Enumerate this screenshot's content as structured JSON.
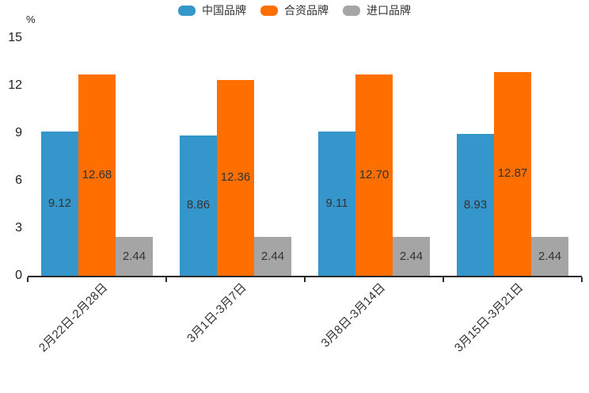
{
  "chart_data": {
    "type": "bar",
    "title": "",
    "unit_label": "%",
    "categories": [
      "2月22日-2月28日",
      "3月1日-3月7日",
      "3月8日-3月14日",
      "3月15日-3月21日"
    ],
    "series": [
      {
        "name": "中国品牌",
        "color": "#3496CB",
        "values": [
          9.12,
          8.86,
          9.11,
          8.93
        ]
      },
      {
        "name": "合资品牌",
        "color": "#FF6F00",
        "values": [
          12.68,
          12.36,
          12.7,
          12.87
        ]
      },
      {
        "name": "进口品牌",
        "color": "#A5A5A5",
        "values": [
          2.44,
          2.44,
          2.44,
          2.44
        ]
      }
    ],
    "ylim": [
      0,
      15
    ],
    "yticks": [
      0,
      3,
      6,
      9,
      12,
      15
    ],
    "grid": false,
    "legend_position": "top",
    "value_labels": true,
    "value_label_decimals": 2,
    "xlabel_rotation_deg": 45
  },
  "colors": {
    "axis": "#2b2b2b",
    "bar_value_text": "#333333",
    "tick_text": "#222222",
    "background": "#ffffff"
  }
}
